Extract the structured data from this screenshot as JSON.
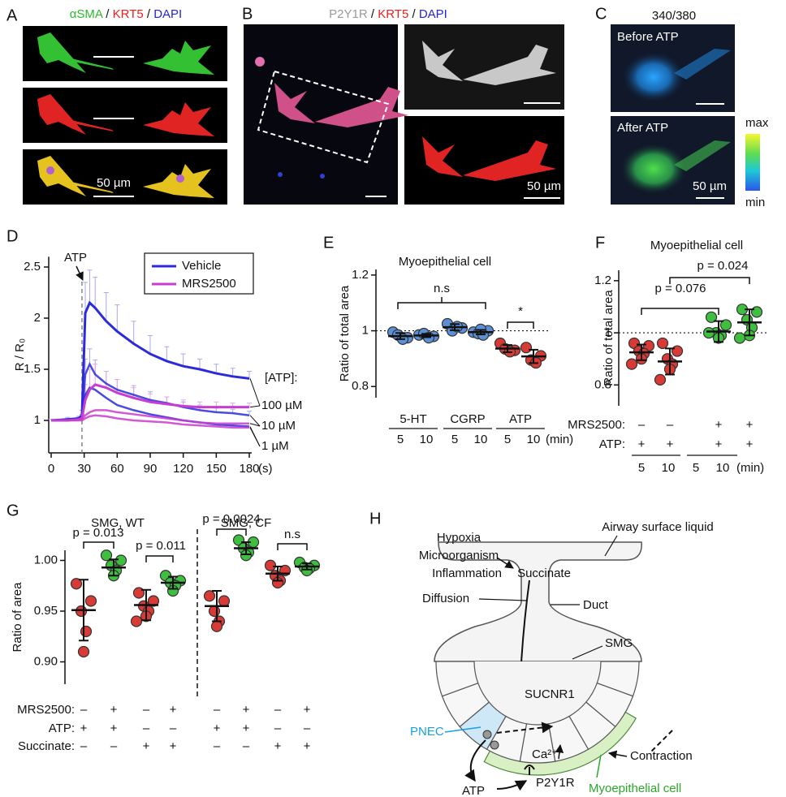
{
  "panel_labels": [
    "A",
    "B",
    "C",
    "D",
    "E",
    "F",
    "G",
    "H"
  ],
  "panel_a": {
    "title": [
      {
        "text": "αSMA",
        "color": "#2db92d"
      },
      {
        "text": " / ",
        "color": "#111111"
      },
      {
        "text": "KRT5",
        "color": "#e8201e"
      },
      {
        "text": " / ",
        "color": "#111111"
      },
      {
        "text": "DAPI",
        "color": "#2424d8"
      }
    ],
    "scale_label": "50 µm"
  },
  "panel_b": {
    "title": [
      {
        "text": "P2Y1R",
        "color": "#9a9a9a"
      },
      {
        "text": " / ",
        "color": "#111111"
      },
      {
        "text": "KRT5",
        "color": "#e8201e"
      },
      {
        "text": " / ",
        "color": "#111111"
      },
      {
        "text": "DAPI",
        "color": "#2424d8"
      }
    ],
    "scale_label": "50 µm"
  },
  "panel_c": {
    "title": "340/380",
    "before": "Before ATP",
    "after": "After ATP",
    "colorbar_max": "max",
    "colorbar_min": "min",
    "scale_label": "50 µm"
  },
  "chart_data": [
    {
      "type": "line",
      "ylabel": "R / R₀",
      "xlabel": "(s)",
      "annotation": "ATP",
      "stimulus_x": 28,
      "x": [
        0,
        15,
        25,
        28,
        31,
        35,
        40,
        50,
        60,
        75,
        90,
        105,
        120,
        135,
        150,
        165,
        180
      ],
      "xlim": [
        0,
        180
      ],
      "xticks": [
        0,
        30,
        60,
        90,
        120,
        150,
        180
      ],
      "ylim": [
        0.7,
        2.6
      ],
      "yticks": [
        1,
        1.5,
        2,
        2.5
      ],
      "concentration_title": "[ATP]:",
      "concentrations": [
        "100 µM",
        "10 µM",
        "1 µM"
      ],
      "series": [
        {
          "name": "Vehicle",
          "color": "#2b2bdc",
          "error_color": "#a9a9ee",
          "lines": [
            {
              "values": [
                1,
                1.01,
                1.02,
                1.05,
                2.05,
                2.15,
                2.1,
                1.97,
                1.87,
                1.75,
                1.65,
                1.58,
                1.53,
                1.5,
                1.46,
                1.43,
                1.41
              ],
              "errors": [
                0.01,
                0.02,
                0.02,
                0.05,
                0.3,
                0.32,
                0.3,
                0.28,
                0.26,
                0.22,
                0.18,
                0.14,
                0.12,
                0.1,
                0.09,
                0.08,
                0.07
              ]
            },
            {
              "values": [
                1,
                1.01,
                1.02,
                1.03,
                1.45,
                1.55,
                1.45,
                1.36,
                1.3,
                1.25,
                1.2,
                1.17,
                1.13,
                1.1,
                1.08,
                1.07,
                1.05
              ],
              "errors": [
                0.01,
                0.01,
                0.01,
                0.03,
                0.15,
                0.15,
                0.14,
                0.12,
                0.1,
                0.09,
                0.08,
                0.06,
                0.05,
                0.05,
                0.04,
                0.04,
                0.04
              ]
            },
            {
              "values": [
                1,
                1,
                1.01,
                1.02,
                1.25,
                1.32,
                1.3,
                1.22,
                1.15,
                1.1,
                1.06,
                1.03,
                1,
                0.98,
                0.96,
                0.95,
                0.94
              ]
            }
          ]
        },
        {
          "name": "MRS2500",
          "color": "#c93ccf",
          "error_color": "#e5a8e8",
          "lines": [
            {
              "values": [
                1,
                1,
                1.01,
                1.02,
                1.2,
                1.3,
                1.35,
                1.32,
                1.27,
                1.22,
                1.18,
                1.16,
                1.14,
                1.13,
                1.13,
                1.13,
                1.13
              ],
              "errors": [
                0.01,
                0.01,
                0.01,
                0.03,
                0.15,
                0.2,
                0.2,
                0.16,
                0.13,
                0.1,
                0.08,
                0.07,
                0.06,
                0.05,
                0.05,
                0.04,
                0.04
              ]
            },
            {
              "values": [
                1,
                1,
                1.01,
                1.01,
                1.05,
                1.08,
                1.1,
                1.1,
                1.08,
                1.06,
                1.04,
                1.02,
                1,
                0.98,
                0.97,
                0.97,
                0.97
              ]
            },
            {
              "values": [
                1,
                1,
                1,
                1,
                1.02,
                1.04,
                1.05,
                1.04,
                1.02,
                1,
                0.99,
                0.98,
                0.96,
                0.95,
                0.94,
                0.93,
                0.93
              ]
            }
          ]
        }
      ]
    },
    {
      "type": "dot",
      "title": "Myoepithelial cell",
      "ylabel": "Ratio of total area",
      "ylim": [
        0.76,
        1.22
      ],
      "yticks": [
        0.8,
        1,
        1.2
      ],
      "reference_line": 1,
      "groups": [
        {
          "label": "5-HT",
          "times": [
            "5",
            "10"
          ]
        },
        {
          "label": "CGRP",
          "times": [
            "5",
            "10"
          ]
        },
        {
          "label": "ATP",
          "times": [
            "5",
            "10"
          ]
        }
      ],
      "unit": "(min)",
      "columns": [
        {
          "color": "#5b8fd6",
          "values": [
            0.995,
            0.975,
            0.985,
            0.97
          ],
          "mean": 0.981,
          "sd": 0.011
        },
        {
          "color": "#5b8fd6",
          "values": [
            0.985,
            0.98,
            0.99,
            0.975
          ],
          "mean": 0.983,
          "sd": 0.006
        },
        {
          "color": "#5b8fd6",
          "values": [
            1.025,
            1.01,
            1,
            1.015
          ],
          "mean": 1.013,
          "sd": 0.011
        },
        {
          "color": "#5b8fd6",
          "values": [
            0.995,
            1,
            0.99,
            0.985,
            1.005
          ],
          "mean": 0.995,
          "sd": 0.008
        },
        {
          "color": "#d83b35",
          "values": [
            0.955,
            0.93,
            0.935,
            0.925
          ],
          "mean": 0.936,
          "sd": 0.013
        },
        {
          "color": "#d83b35",
          "values": [
            0.94,
            0.91,
            0.895,
            0.885
          ],
          "mean": 0.908,
          "sd": 0.024
        }
      ],
      "comparisons": [
        "n.s",
        "*"
      ]
    },
    {
      "type": "dot",
      "title": "Myoepithelial cell",
      "ylabel": "Ratio of total area",
      "ylim": [
        0.72,
        1.24
      ],
      "yticks": [
        0.8,
        1,
        1.2
      ],
      "reference_line": 1,
      "conditions": [
        {
          "label": "MRS2500:",
          "signs": [
            "–",
            "–",
            "+",
            "+"
          ]
        },
        {
          "label": "ATP:",
          "signs": [
            "+",
            "+",
            "+",
            "+"
          ]
        }
      ],
      "times": [
        "5",
        "10",
        "5",
        "10"
      ],
      "unit": "(min)",
      "columns": [
        {
          "color": "#d83b35",
          "values": [
            0.96,
            0.95,
            0.93,
            0.92,
            0.9,
            0.88
          ],
          "mean": 0.925,
          "sd": 0.03
        },
        {
          "color": "#d83b35",
          "values": [
            0.96,
            0.93,
            0.9,
            0.88,
            0.86,
            0.82
          ],
          "mean": 0.89,
          "sd": 0.05
        },
        {
          "color": "#3fbf3f",
          "values": [
            1.06,
            1.03,
            1,
            0.99,
            0.98,
            1
          ],
          "mean": 1.005,
          "sd": 0.04
        },
        {
          "color": "#3fbf3f",
          "values": [
            1.09,
            1.08,
            1.05,
            1.02,
            0.99,
            0.98
          ],
          "mean": 1.04,
          "sd": 0.05
        }
      ],
      "comparisons": [
        "p = 0.076",
        "p = 0.024"
      ]
    },
    {
      "type": "dot",
      "ylabel": "Ratio of area",
      "ylim": [
        0.878,
        1.01
      ],
      "yticks": [
        {
          "value": 0.9,
          "label": "0.90"
        },
        0.95,
        {
          "value": 1,
          "label": "1.00"
        }
      ],
      "group_titles": [
        "SMG, WT",
        "SMG, CF"
      ],
      "conditions": [
        {
          "label": "MRS2500:",
          "signs": [
            "–",
            "+",
            "–",
            "+",
            "–",
            "+",
            "–",
            "+"
          ]
        },
        {
          "label": "ATP:",
          "signs": [
            "+",
            "+",
            "–",
            "–",
            "+",
            "+",
            "–",
            "–"
          ]
        },
        {
          "label": "Succinate:",
          "signs": [
            "–",
            "–",
            "+",
            "+",
            "–",
            "–",
            "+",
            "+"
          ]
        }
      ],
      "columns": [
        {
          "color": "#d83b35",
          "values": [
            0.977,
            0.96,
            0.95,
            0.93,
            0.91
          ],
          "mean": 0.951,
          "sd": 0.03
        },
        {
          "color": "#3fbf3f",
          "values": [
            1.005,
            1,
            0.995,
            0.99,
            0.985
          ],
          "mean": 0.993,
          "sd": 0.008
        },
        {
          "color": "#d83b35",
          "values": [
            0.968,
            0.96,
            0.955,
            0.95,
            0.945,
            0.94
          ],
          "mean": 0.956,
          "sd": 0.015
        },
        {
          "color": "#3fbf3f",
          "values": [
            0.985,
            0.98,
            0.978,
            0.975,
            0.97
          ],
          "mean": 0.978,
          "sd": 0.006
        },
        {
          "color": "#d83b35",
          "values": [
            0.965,
            0.96,
            0.95,
            0.94,
            0.935
          ],
          "mean": 0.955,
          "sd": 0.015
        },
        {
          "color": "#3fbf3f",
          "values": [
            1.02,
            1.018,
            1.012,
            1.008,
            1.005
          ],
          "mean": 1.012,
          "sd": 0.006
        },
        {
          "color": "#d83b35",
          "values": [
            0.995,
            0.99,
            0.985,
            0.98,
            0.978
          ],
          "mean": 0.987,
          "sd": 0.007
        },
        {
          "color": "#3fbf3f",
          "values": [
            0.998,
            0.995,
            0.993,
            0.992,
            0.99
          ],
          "mean": 0.994,
          "sd": 0.003
        }
      ],
      "comparisons": [
        "p = 0.013",
        "p = 0.011",
        "p = 0.0024",
        "n.s"
      ]
    }
  ],
  "diagram": {
    "hypoxia": "Hypoxia",
    "microorganism": "Microorganism",
    "inflammation": "Inflammation",
    "succinate": "Succinate",
    "airway_surface_liquid": "Airway surface liquid",
    "duct": "Duct",
    "diffusion": "Diffusion",
    "smg": "SMG",
    "sucnr1": "SUCNR1",
    "pnec": "PNEC",
    "calcium": "Ca²⁺",
    "contraction": "Contraction",
    "atp": "ATP",
    "p2y1r": "P2Y1R",
    "myoepithelial_cell": "Myoepithelial cell"
  }
}
